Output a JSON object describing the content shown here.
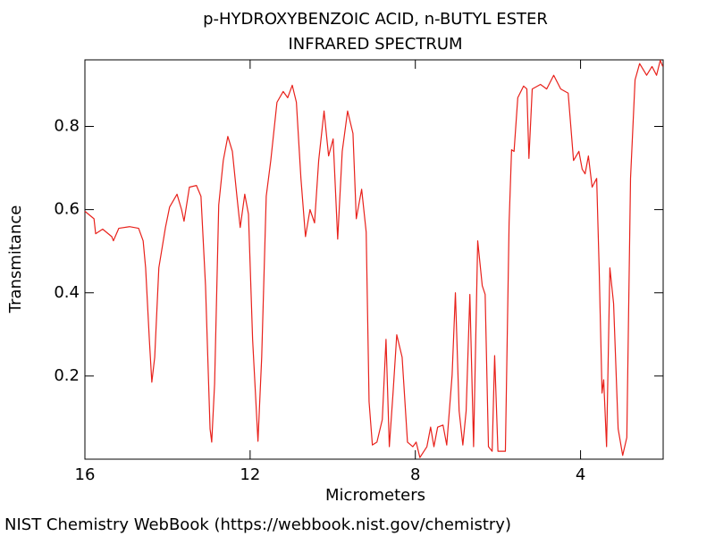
{
  "chart_data": {
    "type": "line",
    "title": "p-HYDROXYBENZOIC ACID, n-BUTYL ESTER",
    "subtitle": "INFRARED SPECTRUM",
    "x_label": "Micrometers",
    "y_label": "Transmitance",
    "xlim": [
      16,
      2
    ],
    "ylim": [
      0,
      0.96
    ],
    "xticks": [
      16,
      12,
      8,
      4
    ],
    "yticks": [
      0.2,
      0.4,
      0.6,
      0.8
    ],
    "series": [
      {
        "color": "#e8211b",
        "x": [
          16.0,
          15.78,
          15.74,
          15.57,
          15.35,
          15.31,
          15.18,
          14.92,
          14.7,
          14.59,
          14.53,
          14.44,
          14.38,
          14.31,
          14.21,
          14.05,
          13.95,
          13.77,
          13.66,
          13.6,
          13.47,
          13.3,
          13.19,
          13.08,
          12.97,
          12.93,
          12.86,
          12.76,
          12.65,
          12.54,
          12.43,
          12.32,
          12.24,
          12.13,
          12.04,
          11.94,
          11.81,
          11.72,
          11.61,
          11.5,
          11.35,
          11.2,
          11.09,
          10.98,
          10.88,
          10.77,
          10.66,
          10.55,
          10.44,
          10.34,
          10.21,
          10.1,
          9.99,
          9.88,
          9.77,
          9.64,
          9.51,
          9.43,
          9.3,
          9.19,
          9.12,
          9.04,
          8.93,
          8.8,
          8.71,
          8.63,
          8.54,
          8.45,
          8.32,
          8.19,
          8.06,
          7.98,
          7.89,
          7.72,
          7.63,
          7.55,
          7.46,
          7.33,
          7.24,
          7.11,
          7.03,
          6.94,
          6.85,
          6.77,
          6.68,
          6.59,
          6.49,
          6.38,
          6.31,
          6.23,
          6.14,
          6.08,
          6.0,
          5.82,
          5.73,
          5.67,
          5.61,
          5.52,
          5.38,
          5.3,
          5.25,
          5.17,
          4.97,
          4.82,
          4.65,
          4.48,
          4.3,
          4.17,
          4.04,
          3.96,
          3.89,
          3.81,
          3.72,
          3.61,
          3.55,
          3.48,
          3.44,
          3.37,
          3.29,
          3.2,
          3.09,
          2.98,
          2.88,
          2.79,
          2.68,
          2.57,
          2.4,
          2.27,
          2.16,
          2.07,
          2.01
        ],
        "values": [
          0.596,
          0.578,
          0.542,
          0.553,
          0.535,
          0.525,
          0.555,
          0.559,
          0.555,
          0.525,
          0.46,
          0.288,
          0.185,
          0.245,
          0.46,
          0.557,
          0.606,
          0.637,
          0.6,
          0.572,
          0.654,
          0.658,
          0.632,
          0.417,
          0.073,
          0.041,
          0.181,
          0.611,
          0.718,
          0.776,
          0.74,
          0.632,
          0.557,
          0.637,
          0.589,
          0.288,
          0.043,
          0.245,
          0.632,
          0.718,
          0.858,
          0.884,
          0.869,
          0.899,
          0.858,
          0.675,
          0.535,
          0.6,
          0.568,
          0.718,
          0.837,
          0.729,
          0.77,
          0.529,
          0.74,
          0.837,
          0.783,
          0.578,
          0.649,
          0.546,
          0.138,
          0.034,
          0.041,
          0.095,
          0.288,
          0.03,
          0.159,
          0.299,
          0.245,
          0.041,
          0.03,
          0.041,
          0.004,
          0.03,
          0.077,
          0.03,
          0.077,
          0.082,
          0.034,
          0.202,
          0.4,
          0.116,
          0.034,
          0.116,
          0.396,
          0.03,
          0.525,
          0.417,
          0.396,
          0.03,
          0.019,
          0.249,
          0.019,
          0.019,
          0.568,
          0.744,
          0.74,
          0.869,
          0.897,
          0.89,
          0.723,
          0.89,
          0.901,
          0.89,
          0.923,
          0.89,
          0.88,
          0.718,
          0.74,
          0.697,
          0.686,
          0.729,
          0.654,
          0.675,
          0.46,
          0.159,
          0.191,
          0.03,
          0.46,
          0.374,
          0.073,
          0.009,
          0.052,
          0.675,
          0.912,
          0.951,
          0.923,
          0.944,
          0.923,
          0.959,
          0.944
        ]
      }
    ],
    "footer": "NIST Chemistry WebBook (https://webbook.nist.gov/chemistry)"
  }
}
